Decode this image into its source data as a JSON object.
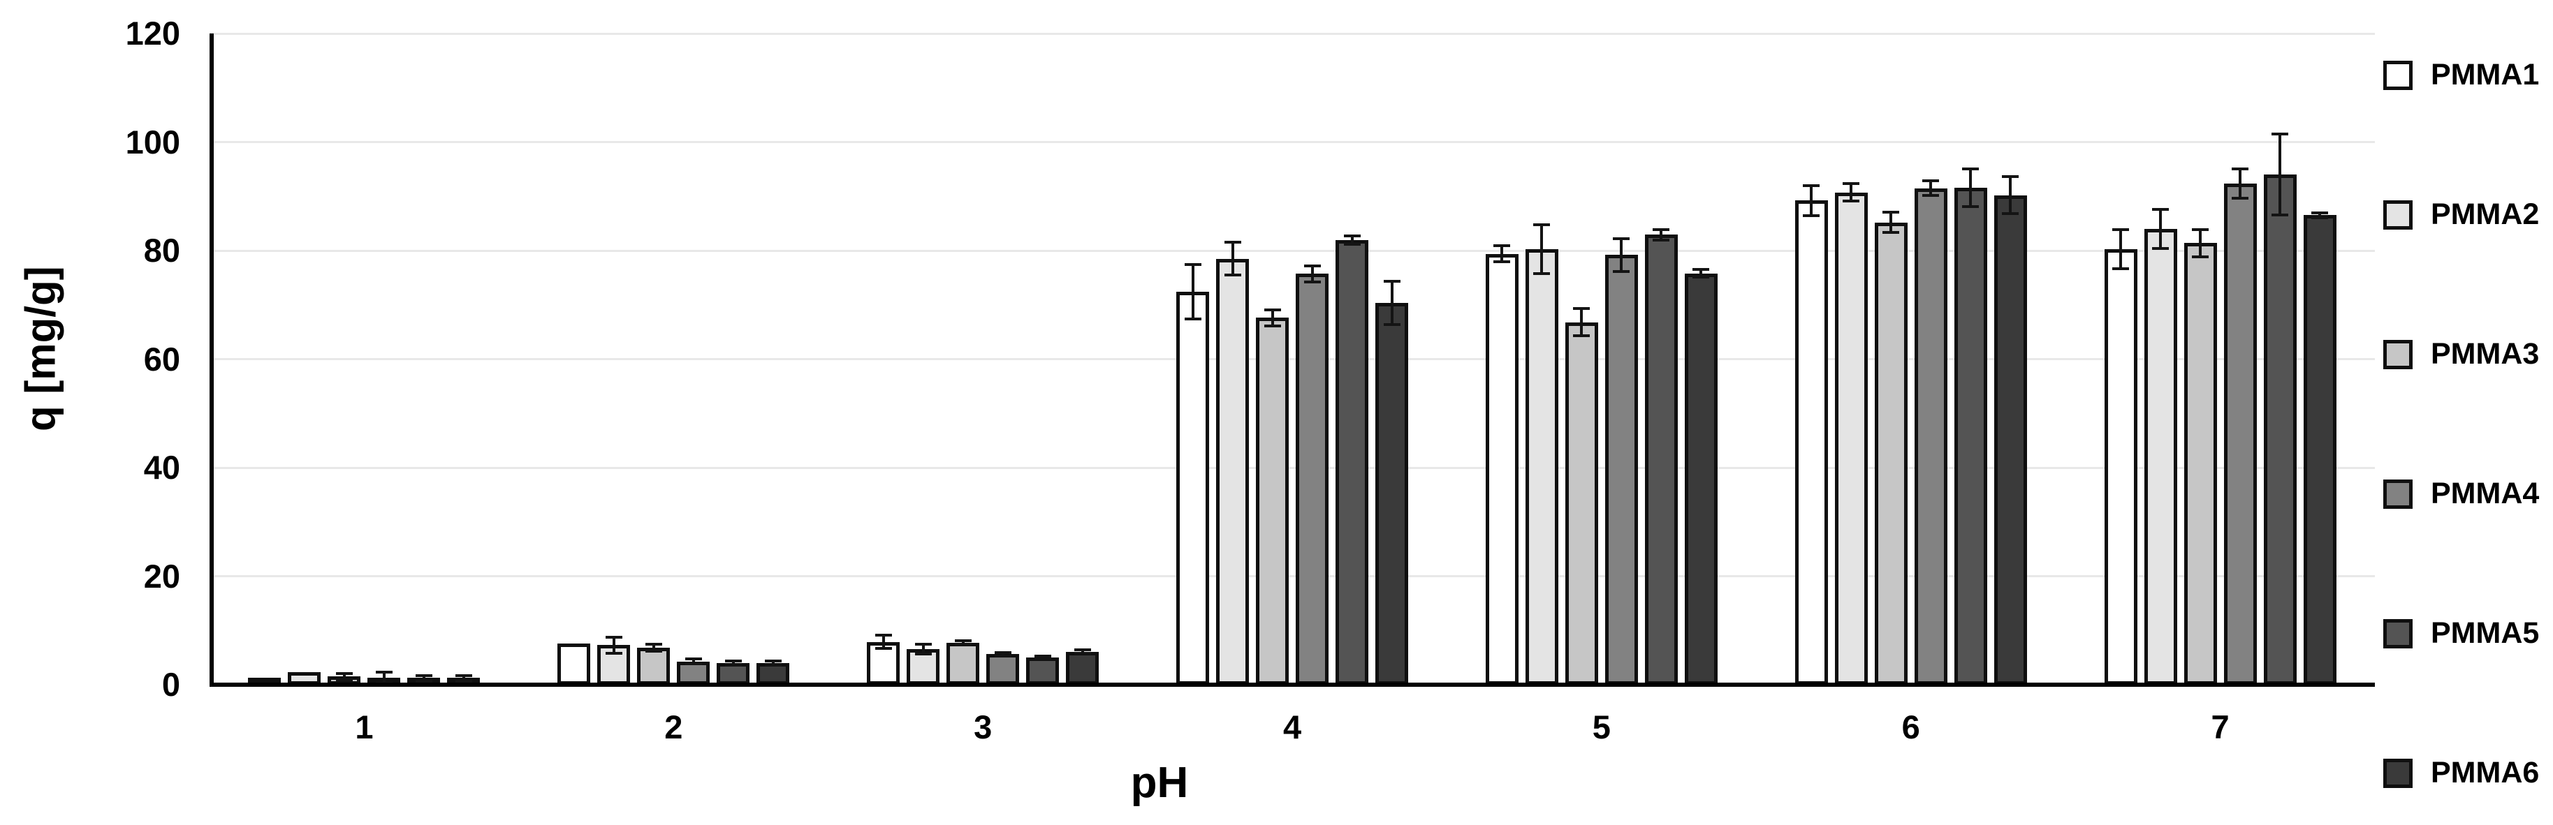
{
  "chart_data": {
    "type": "bar",
    "title": "",
    "xlabel": "pH",
    "ylabel": "q [mg/g]",
    "categories": [
      "1",
      "2",
      "3",
      "4",
      "5",
      "6",
      "7"
    ],
    "y_ticks": [
      "0",
      "20",
      "40",
      "60",
      "80",
      "100",
      "120"
    ],
    "ylim": [
      0,
      120
    ],
    "grid": true,
    "legend_position": "right",
    "bar_outline_color": "#0f0f0f",
    "gridline_color": "#e8e8e8",
    "series": [
      {
        "name": "PMMA1",
        "color": "#ffffff",
        "values": [
          0.6,
          7.6,
          7.9,
          72.4,
          79.4,
          89.2,
          80.3
        ],
        "errors": [
          0,
          0,
          1.2,
          5.0,
          1.5,
          2.8,
          3.6
        ]
      },
      {
        "name": "PMMA2",
        "color": "#e4e4e4",
        "values": [
          2.3,
          7.3,
          6.5,
          78.5,
          80.3,
          90.7,
          84.0
        ],
        "errors": [
          0,
          1.5,
          0.9,
          3.0,
          4.5,
          1.6,
          3.6
        ]
      },
      {
        "name": "PMMA3",
        "color": "#c6c6c6",
        "values": [
          1.5,
          6.8,
          7.7,
          67.6,
          66.8,
          85.2,
          81.4
        ],
        "errors": [
          0.6,
          0.6,
          0.4,
          1.5,
          2.5,
          1.9,
          2.5
        ]
      },
      {
        "name": "PMMA4",
        "color": "#828282",
        "values": [
          1.3,
          4.3,
          5.6,
          75.7,
          79.2,
          91.5,
          92.3
        ],
        "errors": [
          1.0,
          0.4,
          0.3,
          1.5,
          3.0,
          1.4,
          2.7
        ]
      },
      {
        "name": "PMMA5",
        "color": "#545454",
        "values": [
          1.2,
          4.0,
          5.0,
          81.9,
          82.9,
          91.6,
          94.0
        ],
        "errors": [
          0.5,
          0.4,
          0.3,
          0.8,
          1.0,
          3.5,
          7.5
        ]
      },
      {
        "name": "PMMA6",
        "color": "#3a3a3a",
        "values": [
          1.2,
          4.0,
          6.1,
          70.4,
          75.8,
          90.2,
          86.5
        ],
        "errors": [
          0.5,
          0.4,
          0.3,
          4.0,
          0.7,
          3.4,
          0.5
        ]
      }
    ]
  }
}
